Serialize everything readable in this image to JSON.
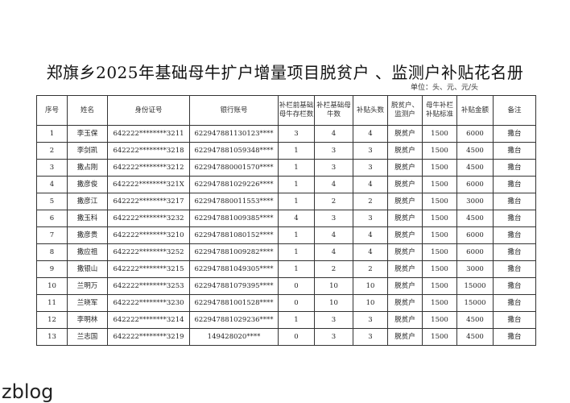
{
  "title": "郑旗乡2025年基础母牛扩户增量项目脱贫户 、监测户补贴花名册",
  "unit": "单位：头、元、元/头",
  "columns": [
    "序号",
    "姓名",
    "身份证号",
    "银行账号",
    "补栏前基础母牛存栏数",
    "补栏基础母牛数",
    "补贴头数",
    "脱贫户、监测户",
    "母牛补栏补贴标准",
    "补贴金额",
    "备注"
  ],
  "rows": [
    [
      "1",
      "李玉保",
      "642222********3211",
      "622947881130123****",
      "3",
      "4",
      "4",
      "脱贫户",
      "1500",
      "6000",
      "撒台"
    ],
    [
      "2",
      "李剑凯",
      "642222********3218",
      "622947881059348****",
      "1",
      "3",
      "3",
      "脱贫户",
      "1500",
      "4500",
      "撒台"
    ],
    [
      "3",
      "撒占刚",
      "642222********3212",
      "622947880001570****",
      "1",
      "3",
      "3",
      "脱贫户",
      "1500",
      "4500",
      "撒台"
    ],
    [
      "4",
      "撒彦俊",
      "642222********321X",
      "622947881029226****",
      "1",
      "4",
      "4",
      "脱贫户",
      "1500",
      "6000",
      "撒台"
    ],
    [
      "5",
      "撒彦江",
      "642222********3217",
      "622947880011553****",
      "1",
      "2",
      "2",
      "脱贫户",
      "1500",
      "3000",
      "撒台"
    ],
    [
      "6",
      "撒玉科",
      "642222********3232",
      "622947881009385****",
      "4",
      "3",
      "3",
      "脱贫户",
      "1500",
      "4500",
      "撒台"
    ],
    [
      "7",
      "撒彦贵",
      "642222********3210",
      "622947881080152****",
      "1",
      "4",
      "4",
      "脱贫户",
      "1500",
      "6000",
      "撒台"
    ],
    [
      "8",
      "撒应祖",
      "642222********3252",
      "622947881009282****",
      "1",
      "4",
      "4",
      "脱贫户",
      "1500",
      "6000",
      "撒台"
    ],
    [
      "9",
      "撒银山",
      "642222********3215",
      "622947881049305****",
      "1",
      "2",
      "2",
      "脱贫户",
      "1500",
      "3000",
      "撒台"
    ],
    [
      "10",
      "兰明万",
      "642222********3253",
      "622947881079395****",
      "0",
      "10",
      "10",
      "脱贫户",
      "1500",
      "15000",
      "撒台"
    ],
    [
      "11",
      "兰晓军",
      "642222********3230",
      "622947881001528****",
      "0",
      "10",
      "10",
      "脱贫户",
      "1500",
      "15000",
      "撒台"
    ],
    [
      "12",
      "李明林",
      "642222********3214",
      "622947881029236****",
      "1",
      "3",
      "3",
      "脱贫户",
      "1500",
      "4500",
      "撒台"
    ],
    [
      "13",
      "兰志国",
      "642222********3219",
      "149428020****",
      "0",
      "3",
      "3",
      "脱贫户",
      "1500",
      "4500",
      "撒台"
    ]
  ],
  "watermark": "zblog"
}
